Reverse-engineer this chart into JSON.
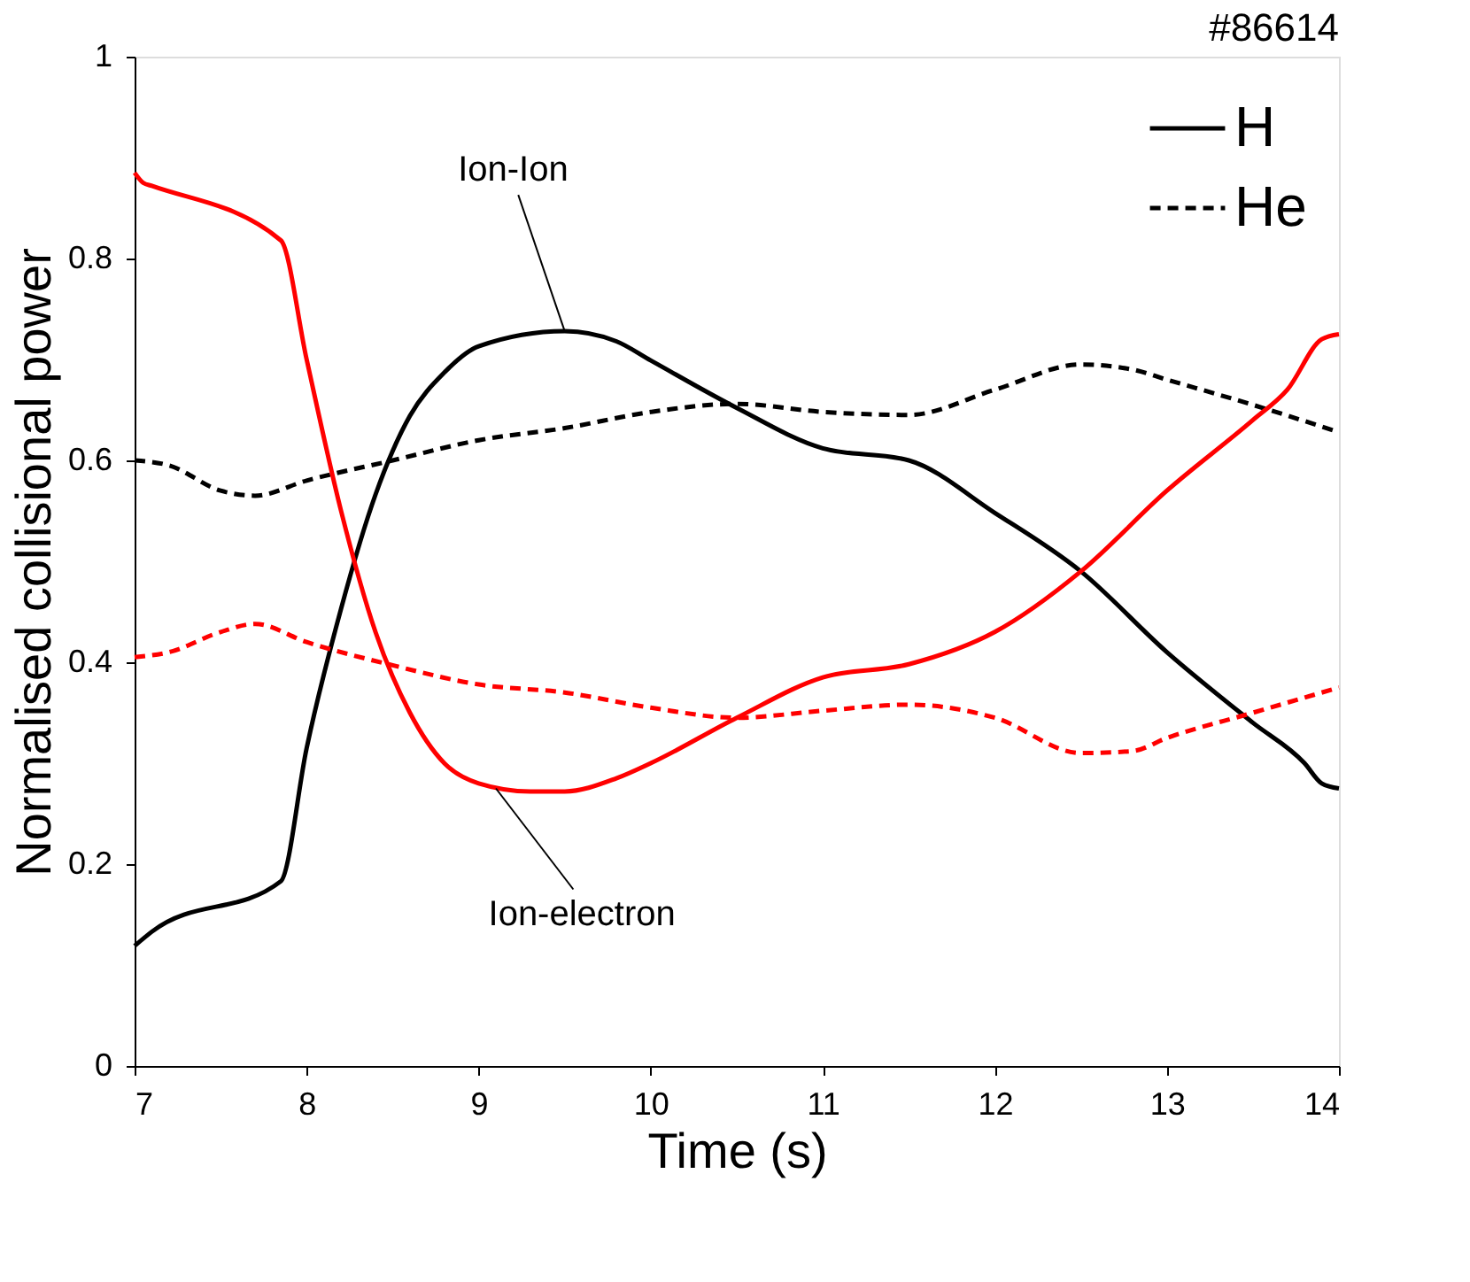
{
  "chart_data": {
    "type": "line",
    "xlabel": "Time (s)",
    "ylabel": "Normalised collisional power",
    "xlim": [
      7,
      14
    ],
    "xticks": [
      7,
      8,
      9,
      10,
      11,
      12,
      13,
      14
    ],
    "ylim": [
      0,
      1
    ],
    "yticks": [
      0,
      0.2,
      0.4,
      0.6,
      0.8,
      1
    ],
    "legend": "top right",
    "grid": false,
    "series": [
      {
        "name": "H",
        "color": "#000000",
        "line_style": "solid",
        "x": [
          7,
          7.1,
          7.85,
          8.0,
          8.2,
          8.4,
          8.6,
          8.8,
          9.0,
          9.5,
          9.8,
          10.0,
          10.5,
          11.0,
          11.5,
          12.0,
          12.5,
          13.0,
          13.5,
          13.8,
          13.9,
          14.0
        ],
        "values": [
          0.119,
          0.133,
          0.183,
          0.315,
          0.453,
          0.566,
          0.644,
          0.687,
          0.713,
          0.728,
          0.718,
          0.699,
          0.652,
          0.612,
          0.6,
          0.548,
          0.49,
          0.41,
          0.34,
          0.3,
          0.28,
          0.275
        ]
      },
      {
        "name": "He",
        "color": "#000000",
        "line_style": "dashed",
        "x": [
          7.0,
          7.2,
          7.5,
          7.7,
          8.0,
          8.5,
          9.0,
          9.5,
          10.0,
          10.5,
          11.0,
          11.5,
          12.0,
          12.5,
          12.8,
          13.0,
          13.5,
          14.0
        ],
        "values": [
          0.6,
          0.595,
          0.57,
          0.565,
          0.58,
          0.6,
          0.62,
          0.632,
          0.648,
          0.656,
          0.648,
          0.645,
          0.67,
          0.695,
          0.69,
          0.68,
          0.655,
          0.628
        ]
      },
      {
        "color": "#ff0000",
        "line_style": "solid",
        "x": [
          7.0,
          7.05,
          7.1,
          7.85,
          8.0,
          8.2,
          8.4,
          8.6,
          8.8,
          9.0,
          9.3,
          9.5,
          9.8,
          10.0,
          10.5,
          11.0,
          11.5,
          12.0,
          12.5,
          13.0,
          13.5,
          13.7,
          13.9,
          14.0
        ],
        "values": [
          0.885,
          0.875,
          0.872,
          0.818,
          0.7,
          0.55,
          0.43,
          0.35,
          0.3,
          0.28,
          0.272,
          0.272,
          0.285,
          0.3,
          0.345,
          0.385,
          0.398,
          0.43,
          0.49,
          0.57,
          0.64,
          0.67,
          0.72,
          0.725
        ]
      },
      {
        "color": "#ff0000",
        "line_style": "dashed",
        "x": [
          7.0,
          7.2,
          7.5,
          7.7,
          8.0,
          8.5,
          9.0,
          9.5,
          10.0,
          10.5,
          11.0,
          11.5,
          12.0,
          12.5,
          12.8,
          13.0,
          13.5,
          14.0
        ],
        "values": [
          0.405,
          0.41,
          0.43,
          0.438,
          0.42,
          0.397,
          0.378,
          0.37,
          0.355,
          0.345,
          0.352,
          0.358,
          0.345,
          0.31,
          0.312,
          0.325,
          0.35,
          0.375
        ]
      }
    ],
    "annotations": [
      {
        "text": "Ion-Ion",
        "x": 9.5,
        "y": 0.728
      },
      {
        "text": "Ion-electron",
        "x": 9.1,
        "y": 0.275
      },
      "#86614"
    ]
  }
}
